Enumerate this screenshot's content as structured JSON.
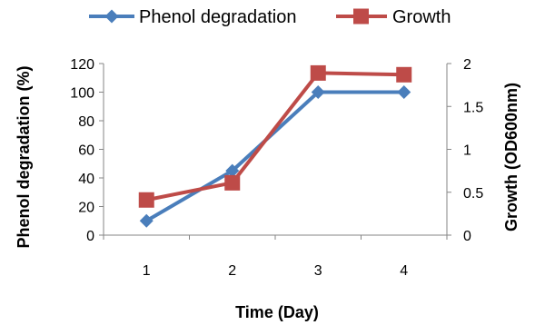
{
  "chart_data": {
    "type": "line",
    "categories": [
      "1",
      "2",
      "3",
      "4"
    ],
    "series": [
      {
        "name": "Phenol degradation",
        "axis": "left",
        "color": "#4a7ebb",
        "marker": "diamond",
        "values": [
          10,
          45,
          100,
          100
        ]
      },
      {
        "name": "Growth",
        "axis": "right",
        "color": "#be4b48",
        "marker": "square",
        "values": [
          0.41,
          0.61,
          1.89,
          1.87
        ]
      }
    ],
    "xlabel": "Time (Day)",
    "ylabel_left": "Phenol degradation (%)",
    "ylabel_right": "Growth (OD600nm)",
    "ylim_left": [
      0,
      120
    ],
    "ylim_right": [
      0,
      2
    ],
    "yticks_left": [
      "0",
      "20",
      "40",
      "60",
      "80",
      "100",
      "120"
    ],
    "yticks_right": [
      "0",
      "0.5",
      "1",
      "1.5",
      "2"
    ],
    "grid": false,
    "legend_position": "top"
  }
}
